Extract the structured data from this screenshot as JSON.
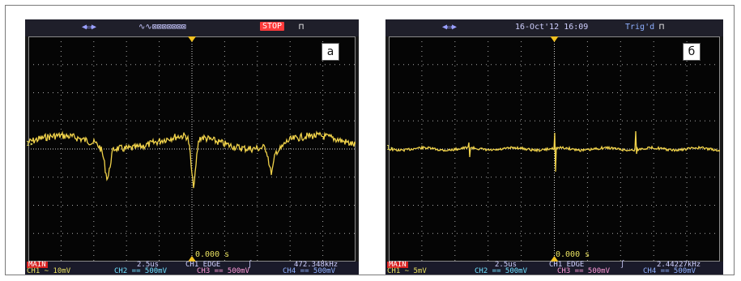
{
  "colors": {
    "trace": "#f0d24a",
    "grid": "#e0e0e0",
    "background": "#050505",
    "bar": "#1f1f2a"
  },
  "panel_a": {
    "label": "а",
    "stop_label": "STOP",
    "time_readout": "0.000 s",
    "status": {
      "main": "MAIN",
      "timebase": "2.5us",
      "trigger": "CH1 EDGE",
      "frequency": "472.348kHz",
      "ch1": "CH1 ~ 10mV",
      "ch2": "CH2 == 500mV",
      "ch3": "CH3 == 500mV",
      "ch4": "CH4 == 500mV"
    }
  },
  "panel_b": {
    "label": "б",
    "datetime": "16-Oct'12 16:09",
    "trig_label": "Trig'd",
    "time_readout": "0.000 s",
    "status": {
      "main": "MAIN",
      "timebase": "2.5us",
      "trigger": "CH1 EDGE",
      "frequency": "2.44227kHz",
      "ch1": "CH1 ~ 5mV",
      "ch2": "CH2 == 500mV",
      "ch3": "CH3 == 500mV",
      "ch4": "CH4 == 500mV"
    }
  }
}
